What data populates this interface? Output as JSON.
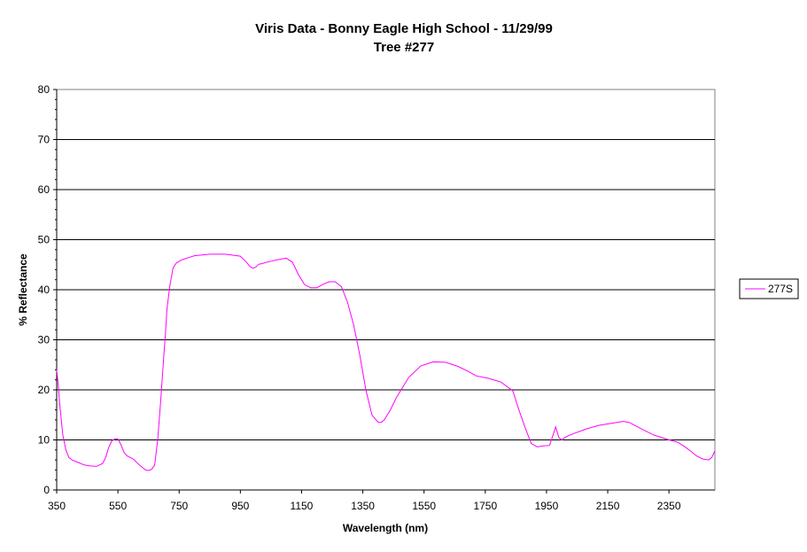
{
  "chart_data": {
    "type": "line",
    "title": "Viris Data - Bonny Eagle High School - 11/29/99",
    "subtitle": "Tree #277",
    "xlabel": "Wavelength (nm)",
    "ylabel": "% Reflectance",
    "xlim": [
      350,
      2500
    ],
    "ylim": [
      0,
      80
    ],
    "x_ticks": [
      "350",
      "550",
      "750",
      "950",
      "1150",
      "1350",
      "1550",
      "1750",
      "1950",
      "2150",
      "2350"
    ],
    "y_ticks": [
      "0",
      "10",
      "20",
      "30",
      "40",
      "50",
      "60",
      "70",
      "80"
    ],
    "grid": "horizontal major lines",
    "legend_position": "right",
    "series": [
      {
        "name": "277S",
        "color": "#ff00ff",
        "x": [
          350,
          355,
          360,
          365,
          370,
          380,
          390,
          400,
          420,
          440,
          460,
          480,
          500,
          510,
          520,
          530,
          540,
          550,
          560,
          570,
          580,
          600,
          620,
          640,
          650,
          660,
          670,
          680,
          690,
          700,
          705,
          710,
          720,
          730,
          740,
          750,
          760,
          780,
          800,
          850,
          900,
          950,
          970,
          980,
          990,
          1000,
          1010,
          1020,
          1030,
          1050,
          1080,
          1100,
          1120,
          1140,
          1160,
          1180,
          1200,
          1220,
          1240,
          1260,
          1280,
          1300,
          1320,
          1340,
          1360,
          1380,
          1400,
          1410,
          1420,
          1440,
          1460,
          1480,
          1500,
          1540,
          1580,
          1620,
          1660,
          1700,
          1720,
          1760,
          1800,
          1840,
          1860,
          1880,
          1900,
          1920,
          1940,
          1960,
          1980,
          1990,
          2000,
          2010,
          2020,
          2040,
          2080,
          2120,
          2160,
          2200,
          2220,
          2260,
          2300,
          2340,
          2380,
          2400,
          2420,
          2440,
          2460,
          2480,
          2490,
          2500
        ],
        "y": [
          24,
          21,
          17,
          14,
          11,
          8,
          6.5,
          6,
          5.5,
          5,
          4.8,
          4.7,
          5.3,
          6.5,
          8.5,
          9.8,
          10.2,
          10.2,
          9,
          7.5,
          6.8,
          6.2,
          5,
          4,
          3.9,
          4.1,
          5,
          10,
          18,
          27,
          31,
          36,
          41,
          44.3,
          45.3,
          45.7,
          46,
          46.4,
          46.8,
          47.1,
          47.1,
          46.7,
          45.5,
          44.7,
          44.3,
          44.5,
          45.1,
          45.2,
          45.4,
          45.7,
          46.1,
          46.3,
          45.5,
          43,
          41,
          40.4,
          40.4,
          41.1,
          41.6,
          41.6,
          40.6,
          37.5,
          33,
          27,
          20,
          15,
          13.5,
          13.5,
          14,
          16,
          18.5,
          20.5,
          22.5,
          24.8,
          25.6,
          25.5,
          24.7,
          23.5,
          22.8,
          22.3,
          21.6,
          19.8,
          16,
          12.5,
          9.3,
          8.6,
          8.8,
          8.9,
          12.6,
          10.5,
          10,
          10.5,
          10.8,
          11.3,
          12.2,
          12.9,
          13.3,
          13.7,
          13.5,
          12.2,
          11,
          10.2,
          9.5,
          8.7,
          7.8,
          6.8,
          6.2,
          6,
          6.5,
          7.8
        ]
      }
    ]
  }
}
